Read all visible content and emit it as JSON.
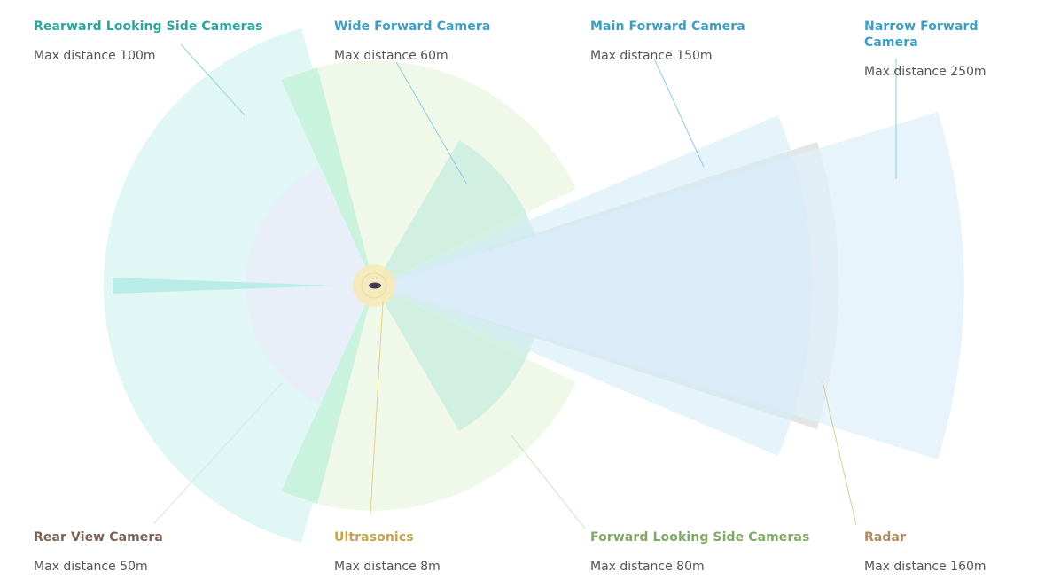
{
  "sensors": [
    {
      "id": "rearward-side",
      "title": "Rearward Looking Side Cameras",
      "distance": "Max distance 100m",
      "color": "#2aa6a0"
    },
    {
      "id": "wide-forward",
      "title": "Wide Forward Camera",
      "distance": "Max distance 60m",
      "color": "#3c9ec4"
    },
    {
      "id": "main-forward",
      "title": "Main Forward Camera",
      "distance": "Max distance 150m",
      "color": "#3c9ec4"
    },
    {
      "id": "narrow-forward",
      "title": "Narrow Forward Camera",
      "distance": "Max distance 250m",
      "color": "#3c9ec4"
    },
    {
      "id": "rear-view",
      "title": "Rear View Camera",
      "distance": "Max distance 50m",
      "color": "#7a6255"
    },
    {
      "id": "ultrasonics",
      "title": "Ultrasonics",
      "distance": "Max distance 8m",
      "color": "#c6a24c"
    },
    {
      "id": "forward-side",
      "title": "Forward Looking Side Cameras",
      "distance": "Max distance 80m",
      "color": "#7fa865"
    },
    {
      "id": "radar",
      "title": "Radar",
      "distance": "Max distance 160m",
      "color": "#b08a5e"
    }
  ]
}
